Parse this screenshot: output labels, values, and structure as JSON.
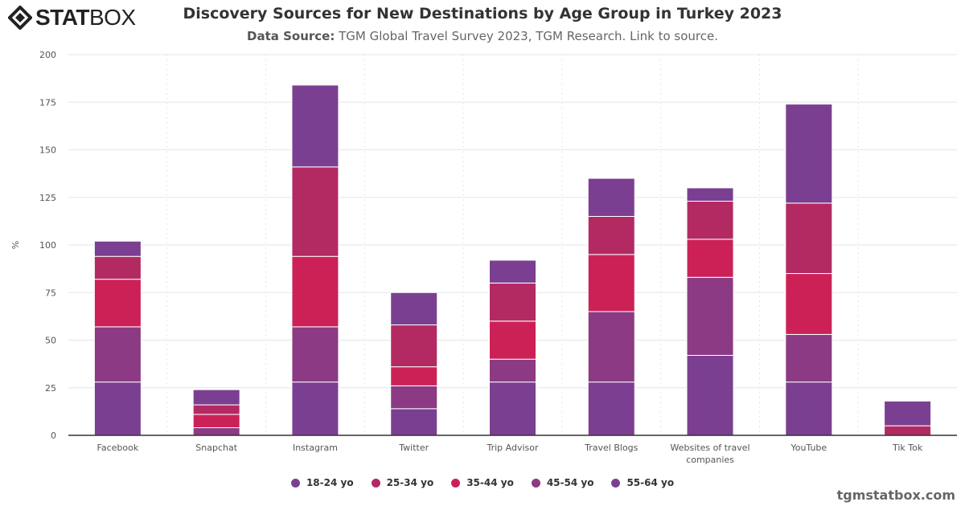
{
  "logo": {
    "text": "STATBOX"
  },
  "header": {
    "title": "Discovery Sources for New Destinations by Age Group in Turkey 2023",
    "source_label": "Data Source:",
    "source_text": "TGM Global Travel Survey 2023, TGM Research. Link to source."
  },
  "footer": {
    "text": "tgmstatbox.com"
  },
  "chart_data": {
    "type": "bar",
    "stacked": true,
    "title": "Discovery Sources for New Destinations by Age Group in Turkey 2023",
    "xlabel": "",
    "ylabel": "%",
    "ylim": [
      0,
      200
    ],
    "yticks": [
      0,
      25,
      50,
      75,
      100,
      125,
      150,
      175,
      200
    ],
    "grid": true,
    "legend_position": "bottom",
    "categories": [
      "Facebook",
      "Snapchat",
      "Instagram",
      "Twitter",
      "Trip Advisor",
      "Travel Blogs",
      "Websites of travel companies",
      "YouTube",
      "Tik Tok"
    ],
    "series": [
      {
        "name": "18-24 yo",
        "color": "#7b3f91",
        "values": [
          8,
          8,
          43,
          17,
          12,
          20,
          7,
          52,
          13
        ]
      },
      {
        "name": "25-34 yo",
        "color": "#b32a63",
        "values": [
          12,
          5,
          47,
          22,
          20,
          20,
          20,
          37,
          5
        ]
      },
      {
        "name": "35-44 yo",
        "color": "#cc2157",
        "values": [
          25,
          7,
          37,
          10,
          20,
          30,
          20,
          32,
          0
        ]
      },
      {
        "name": "45-54 yo",
        "color": "#8c3a83",
        "values": [
          29,
          4,
          29,
          12,
          12,
          37,
          41,
          25,
          0
        ]
      },
      {
        "name": "55-64 yo",
        "color": "#7b3f91",
        "values": [
          28,
          0,
          28,
          14,
          28,
          28,
          42,
          28,
          0
        ]
      }
    ]
  }
}
